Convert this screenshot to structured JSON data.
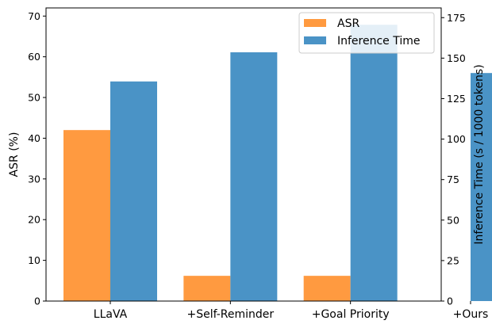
{
  "chart_data": {
    "type": "bar",
    "categories": [
      "LLaVA",
      "+Self-Reminder",
      "+Goal Priority",
      "+Ours"
    ],
    "series": [
      {
        "name": "ASR",
        "axis": "left",
        "color": "#ff9a40",
        "values": [
          42.0,
          6.2,
          6.2,
          0
        ]
      },
      {
        "name": "Inference Time",
        "axis": "right",
        "color": "#4a93c6",
        "values": [
          135.6,
          153.6,
          170.6,
          140.8
        ]
      }
    ],
    "ylabel_left": "ASR (%)",
    "ylabel_right": "Inference Time (s / 1000 tokens)",
    "ylim_left": [
      0,
      72
    ],
    "ylim_right": [
      0,
      181
    ],
    "yticks_left": [
      0,
      10,
      20,
      30,
      40,
      50,
      60,
      70
    ],
    "yticks_right": [
      0,
      25,
      50,
      75,
      100,
      125,
      150,
      175
    ],
    "legend_position": "top-right",
    "grid": false
  }
}
